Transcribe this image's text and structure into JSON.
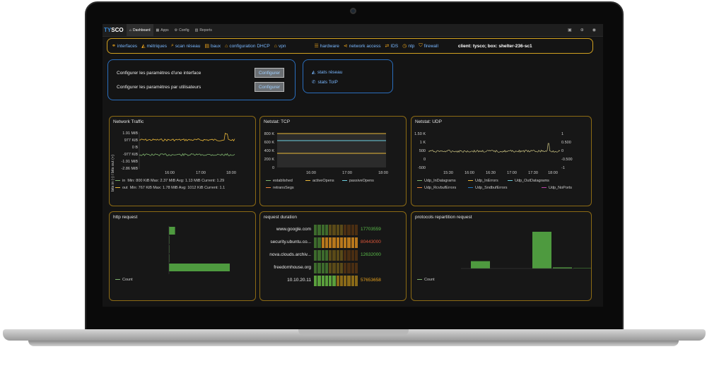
{
  "navbar": {
    "logo_prefix": "T",
    "logo_mid": "Y",
    "logo_suffix": "SCO",
    "tabs": [
      {
        "label": "Dashboard",
        "icon": "home-icon"
      },
      {
        "label": "Apps",
        "icon": "grid-icon"
      },
      {
        "label": "Config",
        "icon": "gear-icon"
      },
      {
        "label": "Reports",
        "icon": "chart-icon"
      }
    ]
  },
  "menu": {
    "items_left": [
      {
        "label": "interfaces",
        "icon": "link-icon"
      },
      {
        "label": "métriques",
        "icon": "area-chart-icon"
      },
      {
        "label": "scan réseau",
        "icon": "search-icon"
      },
      {
        "label": "baux",
        "icon": "file-icon"
      },
      {
        "label": "configuration DHCP",
        "icon": "bank-icon"
      },
      {
        "label": "vpn",
        "icon": "bank-icon"
      }
    ],
    "items_right": [
      {
        "label": "hardware",
        "icon": "server-icon"
      },
      {
        "label": "network access",
        "icon": "share-icon"
      },
      {
        "label": "IDS",
        "icon": "shuffle-icon"
      },
      {
        "label": "ntp",
        "icon": "clock-icon"
      },
      {
        "label": "firewall",
        "icon": "shield-icon"
      }
    ],
    "client_text": "client: tysco; box: shelter-236-sc1"
  },
  "config": {
    "rows": [
      {
        "label": "Configurer les paramètres d'une interface",
        "button": "Configurer"
      },
      {
        "label": "Configurer les paramètres par utilisateurs",
        "button": "Configurer"
      }
    ]
  },
  "stats": {
    "links": [
      {
        "label": "stats réseau",
        "icon": "area-chart-icon"
      },
      {
        "label": "stats ToIP",
        "icon": "phone-icon"
      }
    ]
  },
  "panels": {
    "network_traffic": {
      "title": "Network Traffic",
      "ylabel": "bits in (-) / bits out (+)",
      "yticks": [
        "1.91 MiB",
        "977 KiB",
        "0 B",
        "-977 KiB",
        "-1.91 MiB",
        "-2.86 MiB"
      ],
      "xticks": [
        "16:00",
        "17:00",
        "18:00"
      ],
      "legend": [
        {
          "name": "in",
          "stats": "Min: 800 KiB  Max: 2.37 MiB  Avg: 1.13 MiB  Current: 1.29",
          "color": "#7eb26d"
        },
        {
          "name": "out",
          "stats": "Min: 767 KiB  Max: 1.78 MiB  Avg: 1012 KiB  Current: 1.1",
          "color": "#eab839"
        }
      ]
    },
    "netstat_tcp": {
      "title": "Netstat: TCP",
      "yticks": [
        "800 K",
        "600 K",
        "400 K",
        "200 K",
        "0"
      ],
      "xticks": [
        "16:00",
        "17:00",
        "18:00"
      ],
      "legend": [
        {
          "name": "established",
          "color": "#7eb26d"
        },
        {
          "name": "activeOpens",
          "color": "#eab839"
        },
        {
          "name": "passiveOpens",
          "color": "#6ed0e0"
        },
        {
          "name": "retransSegs",
          "color": "#ef843c"
        }
      ]
    },
    "netstat_udp": {
      "title": "Netstat: UDP",
      "yticks_left": [
        "1.50 K",
        "1 K",
        "500",
        "0",
        "-500"
      ],
      "yticks_right": [
        "1",
        "0.500",
        "0",
        "-0.500",
        "-1"
      ],
      "xticks": [
        "15:30",
        "16:00",
        "16:30",
        "17:00",
        "17:30",
        "18:00"
      ],
      "legend": [
        {
          "name": "Udp_InDatagrams",
          "color": "#7eb26d"
        },
        {
          "name": "Udp_InErrors",
          "color": "#eab839"
        },
        {
          "name": "Udp_OutDatagrams",
          "color": "#6ed0e0"
        },
        {
          "name": "Udp_RcvbufErrors",
          "color": "#ef843c"
        },
        {
          "name": "Udp_SndbufErrors",
          "color": "#1f78c1"
        },
        {
          "name": "Udp_NoPorts",
          "color": "#ba43a9"
        }
      ]
    },
    "http_request": {
      "title": "http request",
      "legend": "Count"
    },
    "request_duration": {
      "title": "request duration",
      "rows": [
        {
          "host": "www.google.com",
          "value": "17703559",
          "color": "#5bbf4a"
        },
        {
          "host": "security.ubuntu.co...",
          "value": "80443000",
          "color": "#e0573a"
        },
        {
          "host": "nova.clouds.archiv...",
          "value": "12632000",
          "color": "#5bbf4a"
        },
        {
          "host": "freedomhouse.org",
          "value": "",
          "color": "#5bbf4a"
        },
        {
          "host": "10.10.20.11",
          "value": "57653658",
          "color": "#e8a21c"
        }
      ]
    },
    "protocols": {
      "title": "protocols repartition request",
      "legend": "Count"
    }
  },
  "chart_data": [
    {
      "type": "line",
      "title": "Network Traffic",
      "ylabel": "bits in (-) / bits out (+)",
      "x": [
        "16:00",
        "17:00",
        "18:00"
      ],
      "series": [
        {
          "name": "in",
          "values": [
            -1.13,
            -1.13,
            -1.13
          ]
        },
        {
          "name": "out",
          "values": [
            0.99,
            0.99,
            0.99
          ]
        }
      ]
    },
    {
      "type": "line",
      "title": "Netstat: TCP",
      "x": [
        "16:00",
        "17:00",
        "18:00"
      ],
      "series": [
        {
          "name": "activeOpens",
          "values": [
            800000,
            800000,
            800000
          ]
        },
        {
          "name": "passiveOpens",
          "values": [
            630000,
            630000,
            630000
          ]
        },
        {
          "name": "retransSegs",
          "values": [
            330000,
            330000,
            330000
          ]
        }
      ]
    },
    {
      "type": "bar",
      "title": "http request",
      "series": [
        {
          "name": "Count",
          "values": [
            1,
            0.07,
            0.07,
            0.07,
            10
          ]
        }
      ]
    },
    {
      "type": "bar",
      "title": "protocols repartition request",
      "series": [
        {
          "name": "Count",
          "values": [
            0.2,
            0,
            0,
            1,
            0.03,
            0.01
          ]
        }
      ]
    }
  ]
}
